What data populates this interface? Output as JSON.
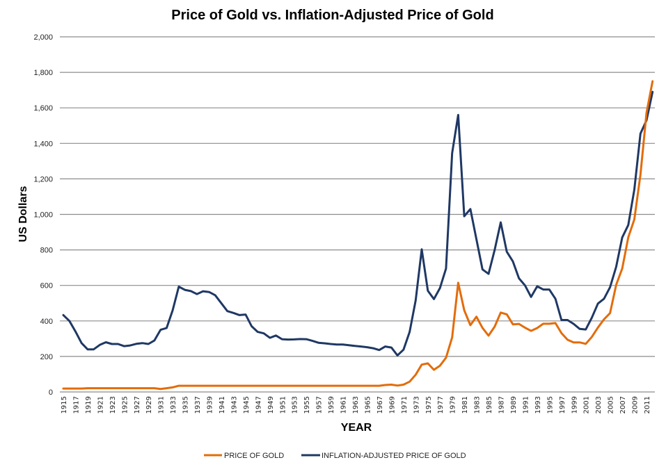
{
  "chart_data": {
    "type": "line",
    "title": "Price of Gold vs. Inflation-Adjusted Price of Gold",
    "xlabel": "YEAR",
    "ylabel": "US Dollars",
    "ylim": [
      0,
      2000
    ],
    "yticks": [
      0,
      200,
      400,
      600,
      800,
      1000,
      1200,
      1400,
      1600,
      1800,
      2000
    ],
    "ytick_labels": [
      "0",
      "200",
      "400",
      "600",
      "800",
      "1,000",
      "1,200",
      "1,400",
      "1,600",
      "1,800",
      "2,000"
    ],
    "xtick_labels": [
      "1915",
      "1917",
      "1919",
      "1921",
      "1923",
      "1925",
      "1927",
      "1929",
      "1931",
      "1933",
      "1935",
      "1937",
      "1939",
      "1941",
      "1943",
      "1945",
      "1947",
      "1949",
      "1951",
      "1953",
      "1955",
      "1957",
      "1959",
      "1961",
      "1963",
      "1965",
      "1967",
      "1969",
      "1971",
      "1973",
      "1975",
      "1977",
      "1979",
      "1981",
      "1983",
      "1985",
      "1987",
      "1989",
      "1991",
      "1993",
      "1995",
      "1997",
      "1999",
      "2001",
      "2003",
      "2005",
      "2007",
      "2009",
      "2011"
    ],
    "grid": true,
    "legend_position": "bottom",
    "x": [
      1915,
      1916,
      1917,
      1918,
      1919,
      1920,
      1921,
      1922,
      1923,
      1924,
      1925,
      1926,
      1927,
      1928,
      1929,
      1930,
      1931,
      1932,
      1933,
      1934,
      1935,
      1936,
      1937,
      1938,
      1939,
      1940,
      1941,
      1942,
      1943,
      1944,
      1945,
      1946,
      1947,
      1948,
      1949,
      1950,
      1951,
      1952,
      1953,
      1954,
      1955,
      1956,
      1957,
      1958,
      1959,
      1960,
      1961,
      1962,
      1963,
      1964,
      1965,
      1966,
      1967,
      1968,
      1969,
      1970,
      1971,
      1972,
      1973,
      1974,
      1975,
      1976,
      1977,
      1978,
      1979,
      1980,
      1981,
      1982,
      1983,
      1984,
      1985,
      1986,
      1987,
      1988,
      1989,
      1990,
      1991,
      1992,
      1993,
      1994,
      1995,
      1996,
      1997,
      1998,
      1999,
      2000,
      2001,
      2002,
      2003,
      2004,
      2005,
      2006,
      2007,
      2008,
      2009,
      2010,
      2011,
      2012
    ],
    "series": [
      {
        "name": "PRICE OF GOLD",
        "color": "#e36c0a",
        "values": [
          19,
          19,
          19,
          19,
          21,
          21,
          21,
          21,
          21,
          21,
          21,
          21,
          21,
          21,
          21,
          21,
          17,
          21,
          26,
          35,
          35,
          35,
          35,
          35,
          35,
          35,
          35,
          35,
          35,
          35,
          35,
          35,
          35,
          35,
          35,
          35,
          35,
          35,
          35,
          35,
          35,
          35,
          35,
          35,
          35,
          35,
          35,
          35,
          35,
          35,
          35,
          35,
          35,
          39,
          41,
          36,
          41,
          58,
          97,
          154,
          161,
          125,
          148,
          193,
          307,
          615,
          460,
          376,
          424,
          361,
          317,
          368,
          447,
          437,
          381,
          383,
          362,
          344,
          360,
          384,
          384,
          388,
          331,
          294,
          279,
          279,
          271,
          310,
          363,
          409,
          444,
          603,
          695,
          871,
          972,
          1224,
          1572,
          1750
        ]
      },
      {
        "name": "INFLATION-ADJUSTED PRICE OF GOLD",
        "color": "#1f3864",
        "values": [
          433,
          400,
          340,
          275,
          240,
          240,
          265,
          280,
          270,
          270,
          258,
          262,
          271,
          275,
          270,
          290,
          350,
          360,
          460,
          593,
          575,
          568,
          551,
          567,
          563,
          545,
          500,
          455,
          445,
          433,
          436,
          370,
          338,
          330,
          305,
          318,
          297,
          295,
          296,
          298,
          297,
          288,
          277,
          274,
          270,
          267,
          267,
          263,
          259,
          256,
          252,
          246,
          236,
          256,
          250,
          206,
          238,
          338,
          516,
          803,
          570,
          523,
          585,
          695,
          1345,
          1560,
          990,
          1030,
          860,
          690,
          665,
          800,
          955,
          790,
          735,
          640,
          600,
          535,
          595,
          577,
          577,
          525,
          405,
          405,
          383,
          355,
          352,
          418,
          498,
          525,
          590,
          705,
          870,
          940,
          1140,
          1455,
          1530,
          1690
        ]
      }
    ]
  },
  "legend": {
    "items": [
      {
        "label": "PRICE OF GOLD",
        "color": "#e36c0a"
      },
      {
        "label": "INFLATION-ADJUSTED PRICE OF GOLD",
        "color": "#1f3864"
      }
    ]
  }
}
